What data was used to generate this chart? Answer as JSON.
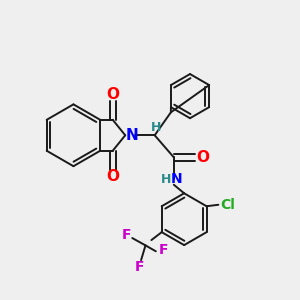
{
  "background_color": "#efefef",
  "bond_color": "#1a1a1a",
  "bond_width": 1.4,
  "figsize": [
    3.0,
    3.0
  ],
  "dpi": 100,
  "xlim": [
    0,
    10
  ],
  "ylim": [
    0,
    10
  ]
}
